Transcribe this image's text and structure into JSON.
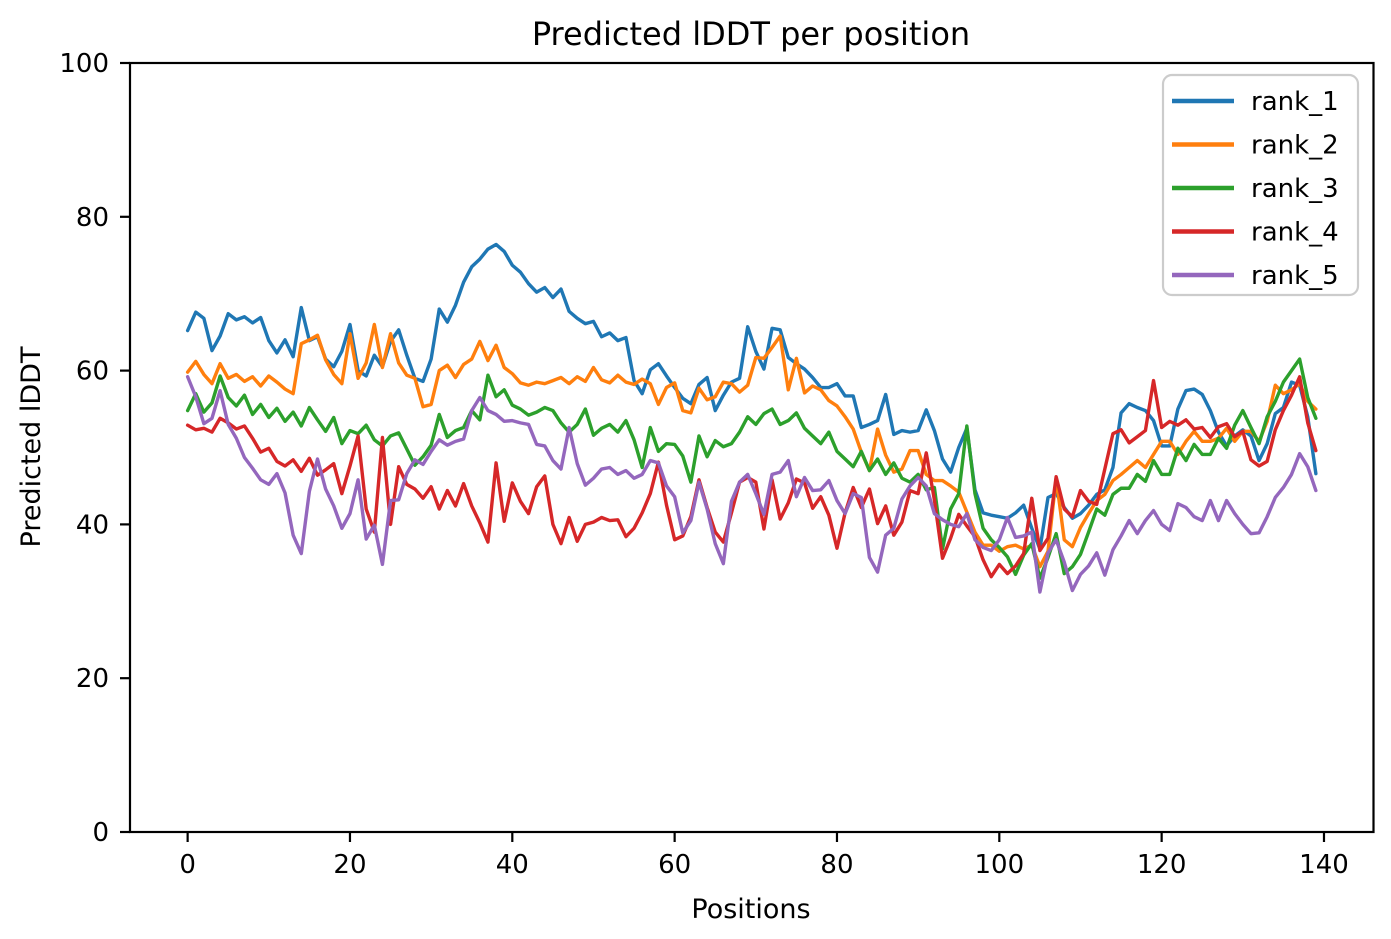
{
  "figure": {
    "background": "#ffffff",
    "spine_color": "#000000",
    "legend_border_color": "#cccccc"
  },
  "chart_data": {
    "type": "line",
    "title": "Predicted lDDT per position",
    "xlabel": "Positions",
    "ylabel": "Predicted lDDT",
    "xlim": [
      -7.1,
      146.1
    ],
    "ylim": [
      0,
      100
    ],
    "xticks": [
      0,
      20,
      40,
      60,
      80,
      100,
      120,
      140
    ],
    "yticks": [
      0,
      20,
      40,
      60,
      80,
      100
    ],
    "grid": false,
    "legend_position": "upper right",
    "x": [
      0,
      1,
      2,
      3,
      4,
      5,
      6,
      7,
      8,
      9,
      10,
      11,
      12,
      13,
      14,
      15,
      16,
      17,
      18,
      19,
      20,
      21,
      22,
      23,
      24,
      25,
      26,
      27,
      28,
      29,
      30,
      31,
      32,
      33,
      34,
      35,
      36,
      37,
      38,
      39,
      40,
      41,
      42,
      43,
      44,
      45,
      46,
      47,
      48,
      49,
      50,
      51,
      52,
      53,
      54,
      55,
      56,
      57,
      58,
      59,
      60,
      61,
      62,
      63,
      64,
      65,
      66,
      67,
      68,
      69,
      70,
      71,
      72,
      73,
      74,
      75,
      76,
      77,
      78,
      79,
      80,
      81,
      82,
      83,
      84,
      85,
      86,
      87,
      88,
      89,
      90,
      91,
      92,
      93,
      94,
      95,
      96,
      97,
      98,
      99,
      100,
      101,
      102,
      103,
      104,
      105,
      106,
      107,
      108,
      109,
      110,
      111,
      112,
      113,
      114,
      115,
      116,
      117,
      118,
      119,
      120,
      121,
      122,
      123,
      124,
      125,
      126,
      127,
      128,
      129,
      130,
      131,
      132,
      133,
      134,
      135,
      136,
      137,
      138,
      139
    ],
    "series": [
      {
        "name": "rank_1",
        "color": "#1f77b4",
        "values": [
          65.2,
          67.6,
          66.8,
          62.6,
          64.5,
          67.4,
          66.6,
          67.0,
          66.2,
          66.9,
          63.9,
          62.3,
          64.0,
          61.8,
          68.2,
          63.9,
          64.4,
          61.5,
          60.5,
          62.5,
          66.0,
          60.0,
          59.3,
          62.0,
          60.5,
          63.8,
          65.3,
          62.0,
          59.0,
          58.6,
          61.5,
          68.0,
          66.3,
          68.5,
          71.5,
          73.5,
          74.5,
          75.8,
          76.4,
          75.5,
          73.7,
          72.8,
          71.3,
          70.2,
          70.8,
          69.5,
          70.6,
          67.7,
          66.8,
          66.1,
          66.4,
          64.4,
          64.9,
          63.9,
          64.3,
          58.7,
          57.0,
          60.1,
          60.9,
          59.3,
          57.8,
          56.4,
          55.7,
          58.2,
          59.1,
          54.8,
          56.8,
          58.5,
          59.0,
          65.7,
          62.5,
          60.2,
          65.5,
          65.3,
          61.7,
          60.9,
          60.2,
          59.1,
          57.8,
          57.8,
          58.3,
          56.7,
          56.7,
          52.6,
          53.0,
          53.5,
          56.9,
          51.7,
          52.2,
          52.0,
          52.2,
          54.9,
          52.2,
          48.5,
          46.8,
          50.0,
          52.5,
          44.5,
          41.5,
          41.2,
          41.0,
          40.8,
          41.5,
          42.5,
          39.5,
          36.8,
          43.5,
          44.0,
          42.2,
          40.8,
          41.4,
          42.5,
          43.9,
          44.5,
          47.4,
          54.5,
          55.7,
          55.2,
          54.8,
          53.5,
          50.2,
          50.2,
          55.0,
          57.4,
          57.6,
          56.9,
          54.8,
          52.0,
          50.2,
          51.5,
          52.3,
          51.5,
          48.3,
          50.5,
          54.4,
          55.2,
          58.5,
          58.1,
          54.0,
          46.6
        ]
      },
      {
        "name": "rank_2",
        "color": "#ff7f0e",
        "values": [
          59.8,
          61.2,
          59.5,
          58.3,
          60.9,
          59.0,
          59.5,
          58.6,
          59.2,
          58.0,
          59.3,
          58.5,
          57.6,
          57.0,
          63.5,
          64.0,
          64.6,
          61.4,
          59.5,
          58.3,
          64.8,
          59.0,
          61.0,
          66.0,
          60.4,
          64.8,
          61.0,
          59.4,
          59.0,
          55.3,
          55.6,
          60.0,
          60.7,
          59.1,
          60.8,
          61.5,
          63.8,
          61.3,
          63.3,
          60.4,
          59.6,
          58.4,
          58.1,
          58.5,
          58.3,
          58.7,
          59.1,
          58.3,
          59.2,
          58.6,
          60.4,
          58.8,
          58.4,
          59.4,
          58.5,
          58.2,
          58.9,
          58.3,
          55.6,
          57.8,
          58.4,
          54.8,
          54.5,
          57.7,
          56.2,
          56.6,
          58.5,
          58.3,
          57.2,
          58.1,
          61.7,
          61.6,
          63.0,
          64.5,
          57.5,
          61.6,
          57.1,
          58.0,
          57.5,
          56.1,
          55.4,
          54.0,
          52.4,
          49.4,
          47.0,
          52.4,
          49.0,
          46.8,
          47.2,
          49.6,
          49.6,
          46.5,
          45.7,
          45.7,
          45.0,
          44.2,
          41.6,
          39.0,
          37.3,
          37.3,
          36.5,
          37.1,
          37.3,
          36.8,
          37.3,
          34.5,
          36.5,
          46.0,
          38.0,
          37.1,
          39.6,
          41.4,
          43.1,
          43.9,
          45.7,
          46.5,
          47.4,
          48.3,
          47.4,
          49.1,
          50.8,
          50.8,
          49.1,
          50.8,
          52.1,
          50.8,
          50.8,
          51.2,
          52.5,
          50.8,
          52.1,
          52.1,
          50.8,
          53.4,
          58.1,
          57.0,
          57.5,
          58.3,
          56.0,
          55.0
        ]
      },
      {
        "name": "rank_3",
        "color": "#2ca02c",
        "values": [
          54.8,
          57.0,
          54.6,
          55.8,
          59.3,
          56.5,
          55.4,
          56.8,
          54.3,
          55.6,
          53.9,
          55.1,
          53.4,
          54.6,
          52.8,
          55.2,
          53.6,
          52.1,
          53.9,
          50.5,
          52.2,
          51.8,
          52.9,
          51.0,
          50.2,
          51.5,
          51.9,
          49.8,
          47.7,
          48.8,
          50.3,
          54.3,
          51.3,
          52.2,
          52.6,
          54.8,
          53.6,
          59.4,
          56.6,
          57.5,
          55.5,
          55.0,
          54.2,
          54.6,
          55.2,
          54.8,
          53.2,
          52.0,
          53.0,
          55.0,
          51.6,
          52.5,
          53.0,
          52.0,
          53.5,
          51.0,
          47.4,
          52.6,
          49.5,
          50.5,
          50.4,
          48.9,
          45.5,
          51.5,
          48.8,
          50.9,
          50.1,
          50.5,
          52.0,
          54.0,
          53.0,
          54.4,
          55.0,
          53.0,
          53.5,
          54.5,
          52.5,
          51.5,
          50.5,
          52.0,
          49.5,
          48.5,
          47.5,
          49.5,
          47.0,
          48.5,
          46.5,
          48.0,
          46.0,
          45.5,
          46.5,
          44.5,
          44.8,
          36.8,
          42.0,
          44.0,
          52.8,
          44.0,
          39.5,
          38.0,
          37.0,
          35.8,
          33.5,
          36.0,
          37.5,
          33.0,
          35.7,
          38.8,
          33.6,
          34.5,
          36.1,
          39.0,
          42.0,
          41.2,
          43.9,
          44.7,
          44.7,
          46.5,
          45.6,
          48.3,
          46.5,
          46.5,
          49.9,
          48.3,
          50.4,
          49.1,
          49.1,
          51.2,
          49.9,
          52.9,
          54.8,
          52.6,
          50.5,
          54.0,
          56.0,
          58.5,
          60.0,
          61.5,
          56.5,
          53.8
        ]
      },
      {
        "name": "rank_4",
        "color": "#d62728",
        "values": [
          52.9,
          52.3,
          52.5,
          52.0,
          53.8,
          53.2,
          52.4,
          52.8,
          51.2,
          49.4,
          49.9,
          48.2,
          47.6,
          48.4,
          46.9,
          48.6,
          46.4,
          47.1,
          47.9,
          44.0,
          47.6,
          51.5,
          42.0,
          39.0,
          51.3,
          40.0,
          47.5,
          45.2,
          44.6,
          43.4,
          44.9,
          42.0,
          44.4,
          42.4,
          45.3,
          42.4,
          40.2,
          37.7,
          48.0,
          40.4,
          45.4,
          43.0,
          41.4,
          44.9,
          46.3,
          40.0,
          37.5,
          40.9,
          37.8,
          40.0,
          40.3,
          40.9,
          40.5,
          40.6,
          38.4,
          39.5,
          41.5,
          44.0,
          48.1,
          42.5,
          38.0,
          38.5,
          41.0,
          45.8,
          42.2,
          39.0,
          37.7,
          41.5,
          45.5,
          46.1,
          45.5,
          39.4,
          45.8,
          40.7,
          42.8,
          45.9,
          45.4,
          42.1,
          43.6,
          41.2,
          36.9,
          41.5,
          44.8,
          42.2,
          44.6,
          40.1,
          42.4,
          38.6,
          40.3,
          44.4,
          44.0,
          49.3,
          43.2,
          35.6,
          38.2,
          41.3,
          39.8,
          38.4,
          35.4,
          33.2,
          34.8,
          33.6,
          34.6,
          36.2,
          43.4,
          36.6,
          38.2,
          46.2,
          42.0,
          41.0,
          44.4,
          43.0,
          42.6,
          47.2,
          51.8,
          52.3,
          50.6,
          51.4,
          52.2,
          58.7,
          52.6,
          53.4,
          52.9,
          53.6,
          52.4,
          52.6,
          51.3,
          52.7,
          53.1,
          51.4,
          52.1,
          48.4,
          47.6,
          48.2,
          52.3,
          54.8,
          56.8,
          59.2,
          53.2,
          49.6
        ]
      },
      {
        "name": "rank_5",
        "color": "#9467bd",
        "values": [
          59.2,
          56.6,
          53.1,
          53.8,
          57.4,
          53.0,
          51.2,
          48.7,
          47.3,
          45.8,
          45.2,
          46.6,
          44.1,
          38.6,
          36.2,
          44.3,
          48.5,
          44.6,
          42.4,
          39.5,
          41.4,
          45.8,
          38.1,
          39.9,
          34.8,
          43.1,
          43.2,
          46.6,
          48.4,
          47.8,
          49.5,
          51.0,
          50.3,
          50.8,
          51.1,
          54.8,
          56.5,
          54.8,
          54.3,
          53.4,
          53.5,
          53.2,
          53.0,
          50.4,
          50.2,
          48.3,
          47.2,
          52.6,
          47.9,
          45.1,
          46.0,
          47.2,
          47.4,
          46.5,
          47.0,
          46.0,
          46.5,
          48.3,
          48.0,
          45.0,
          43.6,
          38.9,
          40.5,
          45.5,
          42.0,
          37.5,
          34.9,
          43.0,
          45.5,
          46.5,
          44.0,
          41.3,
          46.5,
          46.8,
          48.3,
          43.6,
          46.1,
          44.4,
          44.5,
          45.7,
          43.1,
          41.4,
          44.0,
          43.5,
          35.7,
          33.8,
          38.6,
          39.5,
          43.3,
          45.0,
          46.1,
          45.0,
          41.4,
          40.6,
          40.0,
          39.7,
          41.4,
          38.0,
          37.0,
          36.6,
          38.0,
          40.9,
          38.3,
          38.5,
          39.0,
          31.2,
          36.3,
          38.0,
          35.1,
          31.4,
          33.5,
          34.6,
          36.3,
          33.4,
          36.7,
          38.5,
          40.5,
          38.8,
          40.5,
          41.8,
          40.0,
          39.2,
          42.7,
          42.2,
          41.0,
          40.5,
          43.1,
          40.5,
          43.1,
          41.4,
          40.0,
          38.8,
          38.9,
          41.0,
          43.5,
          44.8,
          46.5,
          49.2,
          47.5,
          44.4
        ]
      }
    ]
  }
}
